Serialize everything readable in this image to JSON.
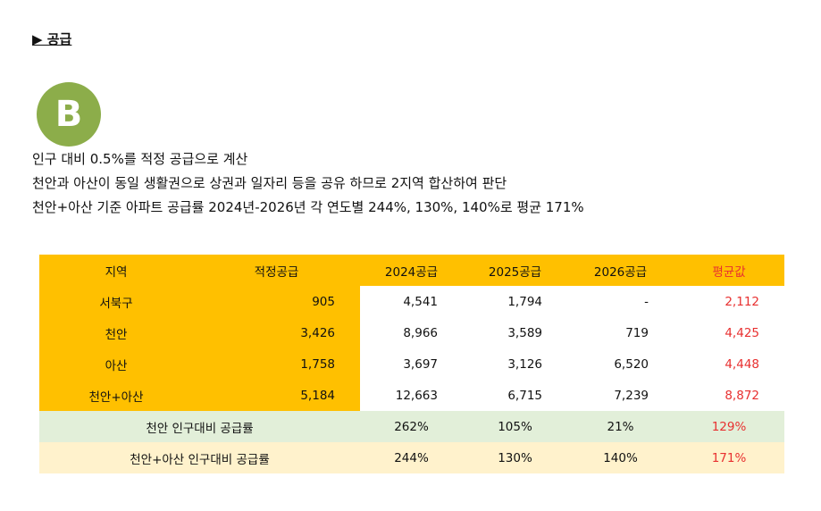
{
  "heading": "▶ 공급",
  "badge": "B",
  "notes": [
    "인구 대비 0.5%를 적정 공급으로 계산",
    "천안과 아산이 동일 생활권으로 상권과 일자리 등을 공유 하므로 2지역 합산하여 판단",
    "천안+아산 기준 아파트 공급률 2024년-2026년 각 연도별 244%, 130%, 140%로 평균 171%"
  ],
  "table": {
    "headers": [
      "지역",
      "적정공급",
      "2024공급",
      "2025공급",
      "2026공급",
      "평균값"
    ],
    "rows": [
      [
        "서북구",
        "905",
        "4,541",
        "1,794",
        "-",
        "2,112"
      ],
      [
        "천안",
        "3,426",
        "8,966",
        "3,589",
        "719",
        "4,425"
      ],
      [
        "아산",
        "1,758",
        "3,697",
        "3,126",
        "6,520",
        "4,448"
      ],
      [
        "천안+아산",
        "5,184",
        "12,663",
        "6,715",
        "7,239",
        "8,872"
      ]
    ],
    "ratio_rows": [
      {
        "label": "천안 인구대비 공급률",
        "values": [
          "262%",
          "105%",
          "21%",
          "129%"
        ]
      },
      {
        "label": "천안+아산 인구대비 공급률",
        "values": [
          "244%",
          "130%",
          "140%",
          "171%"
        ]
      }
    ]
  },
  "colors": {
    "header": "#ffc000",
    "badge": "#8cad4a",
    "accent_red": "#e83030",
    "green_row": "#e2efd9",
    "yellow_row": "#fff2cc"
  }
}
